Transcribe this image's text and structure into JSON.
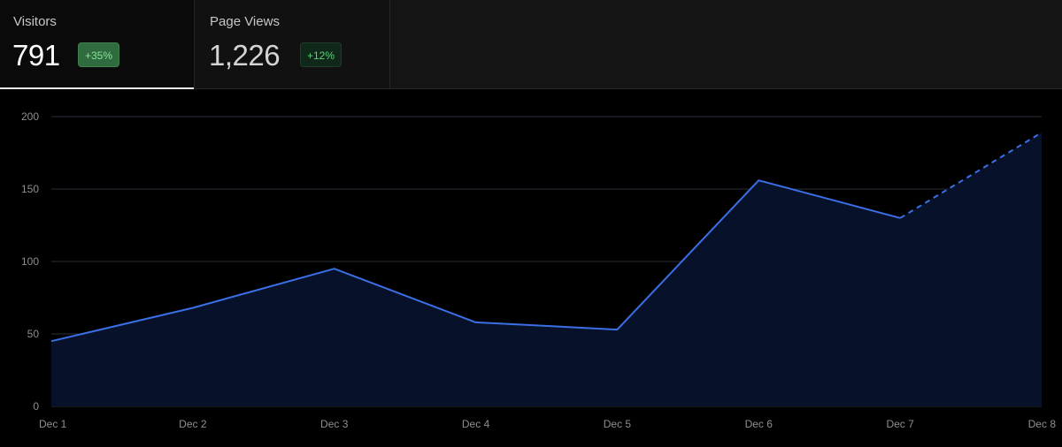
{
  "tabs": [
    {
      "label": "Visitors",
      "value": "791",
      "change": "+35%",
      "active": true
    },
    {
      "label": "Page Views",
      "value": "1,226",
      "change": "+12%",
      "active": false
    }
  ],
  "colors": {
    "line": "#3b6fe6",
    "area": "#08112a",
    "grid": "#2a2f3a",
    "badge_positive_bg": "#2f6b3f",
    "badge_positive_text": "#8be29b"
  },
  "chart_data": {
    "type": "area",
    "categories": [
      "Dec 1",
      "Dec 2",
      "Dec 3",
      "Dec 4",
      "Dec 5",
      "Dec 6",
      "Dec 7",
      "Dec 8"
    ],
    "series": [
      {
        "values": [
          45,
          68,
          95,
          58,
          53,
          156,
          130,
          189
        ],
        "dashed_from_index": 6
      }
    ],
    "y_ticks": [
      0,
      50,
      100,
      150,
      200
    ],
    "ylim": [
      0,
      200
    ],
    "grid": "horizontal",
    "title": "",
    "xlabel": "",
    "ylabel": ""
  }
}
